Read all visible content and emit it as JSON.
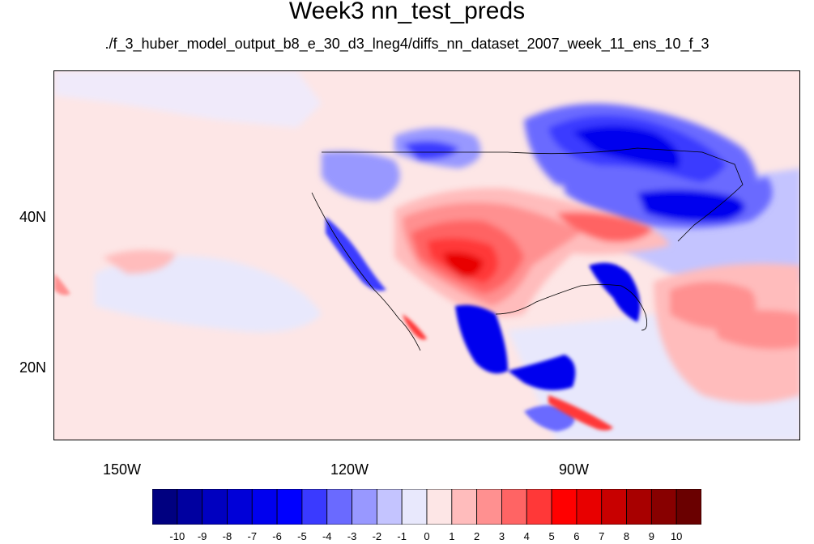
{
  "title": "Week3 nn_test_preds",
  "subtitle": "./f_3_huber_model_output_b8_e_30_d3_lneg4/diffs_nn_dataset_2007_week_11_ens_10_f_3",
  "map": {
    "lat_labels": [
      "40N",
      "20N"
    ],
    "lon_labels": [
      "150W",
      "120W",
      "90W"
    ]
  },
  "colorbar": {
    "labels": [
      "-10",
      "-9",
      "-8",
      "-7",
      "-6",
      "-5",
      "-4",
      "-3",
      "-2",
      "-1",
      "0",
      "1",
      "2",
      "3",
      "4",
      "5",
      "6",
      "7",
      "8",
      "9",
      "10"
    ],
    "colors": [
      "#000080",
      "#0000a0",
      "#0000c0",
      "#0000d8",
      "#0000ee",
      "#0000ff",
      "#3a3aff",
      "#6a6aff",
      "#9898ff",
      "#c4c4ff",
      "#e8e8fc",
      "#fde6e6",
      "#ffbcbc",
      "#ff9090",
      "#ff6464",
      "#ff3838",
      "#ff0000",
      "#e80000",
      "#c80000",
      "#a80000",
      "#880000",
      "#6a0000"
    ]
  }
}
